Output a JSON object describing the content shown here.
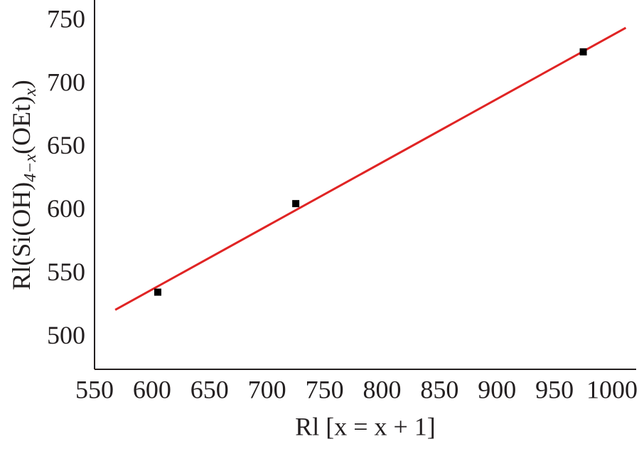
{
  "chart_data": [
    {
      "type": "scatter",
      "x": [
        605,
        725,
        975
      ],
      "values": [
        536,
        606,
        726
      ],
      "color": "#000000",
      "xlabel": "Rl [x = x + 1]",
      "ylabel": [
        "Rl(Si(OH)",
        "4−x",
        "(OEt)",
        "x",
        ")"
      ],
      "xlim": [
        550,
        1021
      ],
      "ylim": [
        475,
        767
      ],
      "xticks": [
        550,
        600,
        650,
        700,
        750,
        800,
        850,
        900,
        950,
        1000
      ],
      "yticks": [
        500,
        550,
        600,
        650,
        700,
        750
      ]
    },
    {
      "type": "line",
      "x": [
        568,
        1012
      ],
      "values": [
        522,
        745
      ],
      "color": "#e02424"
    }
  ]
}
